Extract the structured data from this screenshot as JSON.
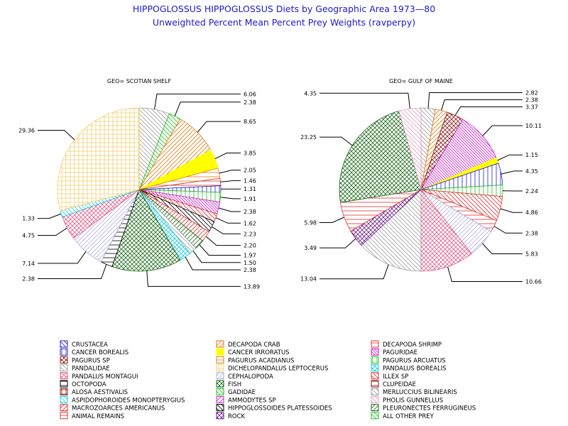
{
  "title": "HIPPOGLOSSUS HIPPOGLOSSUS Diets by Geographic Area 1973—80",
  "subtitle": "Unweighted Percent Mean Percent Prey  Weights (ravperpy)",
  "categories": [
    {
      "name": "CRUSTACEA",
      "color": "#2020cc",
      "pattern": "diag-left"
    },
    {
      "name": "DECAPODA CRAB",
      "color": "#e07a10",
      "pattern": "diag-right"
    },
    {
      "name": "DECAPODA SHRIMP",
      "color": "#e03030",
      "pattern": "horiz"
    },
    {
      "name": "CANCER BOREALIS",
      "color": "#2020cc",
      "pattern": "vert"
    },
    {
      "name": "CANCER IRRORATUS",
      "color": "#ffff00",
      "pattern": "solid"
    },
    {
      "name": "PAGURIDAE",
      "color": "#cc20cc",
      "pattern": "diag-left-dense"
    },
    {
      "name": "PAGURUS SP",
      "color": "#8b1a1a",
      "pattern": "cross-diag"
    },
    {
      "name": "PAGURUS ACADIANUS",
      "color": "#e07a10",
      "pattern": "horiz"
    },
    {
      "name": "PAGURUS ARCUATUS",
      "color": "#20c020",
      "pattern": "vert"
    },
    {
      "name": "PANDALIDAE",
      "color": "#a0a0a0",
      "pattern": "diag-left"
    },
    {
      "name": "DICHELOPANDALUS LEPTOCERUS",
      "color": "#f0d070",
      "pattern": "grid"
    },
    {
      "name": "PANDALUS BOREALIS",
      "color": "#20c8e0",
      "pattern": "cross-diag"
    },
    {
      "name": "PANDALUS MONTAGUI",
      "color": "#e0608a",
      "pattern": "cross-diag"
    },
    {
      "name": "CEPHALOPODA",
      "color": "#b0b0e0",
      "pattern": "diag-right"
    },
    {
      "name": "ILLEX SP",
      "color": "#e03030",
      "pattern": "diag-left"
    },
    {
      "name": "OCTOPODA",
      "color": "#000000",
      "pattern": "horiz"
    },
    {
      "name": "FISH",
      "color": "#1a6a1a",
      "pattern": "cross-diag"
    },
    {
      "name": "CLUPEIDAE",
      "color": "#8b1a1a",
      "pattern": "horiz"
    },
    {
      "name": "ALOSA AESTIVALIS",
      "color": "#8b1a1a",
      "pattern": "grid"
    },
    {
      "name": "GADIDAE",
      "color": "#20c020",
      "pattern": "diag-left"
    },
    {
      "name": "MERLUCCIUS BILINEARIS",
      "color": "#a0a0a0",
      "pattern": "diag-left"
    },
    {
      "name": "ASPIDOPHOROIDES MONOPTERYGIUS",
      "color": "#20c8e0",
      "pattern": "diag-left"
    },
    {
      "name": "AMMODYTES SP",
      "color": "#cc20cc",
      "pattern": "diag-right"
    },
    {
      "name": "PHOLIS GUNNELLUS",
      "color": "#e0a0c0",
      "pattern": "diag-left"
    },
    {
      "name": "MACROZOARCES AMERICANUS",
      "color": "#e03030",
      "pattern": "diag-right"
    },
    {
      "name": "HIPPOGLOSSOIDES PLATESSOIDES",
      "color": "#000000",
      "pattern": "diag-left"
    },
    {
      "name": "PLEURONECTES FERRUGINEUS",
      "color": "#1a6a1a",
      "pattern": "diag-right"
    },
    {
      "name": "ANIMAL REMAINS",
      "color": "#e03030",
      "pattern": "horiz"
    },
    {
      "name": "ROCK",
      "color": "#6a1a8a",
      "pattern": "cross-diag"
    },
    {
      "name": "ALL OTHER PREY",
      "color": "#20c020",
      "pattern": "diag-left"
    }
  ],
  "chart_data": [
    {
      "type": "pie",
      "title": "GEO= SCOTIAN SHELF",
      "slices": [
        {
          "category": "PANDALIDAE",
          "value": 6.06,
          "label": "6.06"
        },
        {
          "category": "GADIDAE",
          "value": 2.38,
          "label": "2.38"
        },
        {
          "category": "DECAPODA CRAB",
          "value": 8.65,
          "label": "8.65"
        },
        {
          "category": "CANCER IRRORATUS",
          "value": 3.85,
          "label": "3.85"
        },
        {
          "category": "PAGURUS ACADIANUS",
          "value": 2.05,
          "label": "2.05"
        },
        {
          "category": "DECAPODA SHRIMP",
          "value": 1.46,
          "label": "1.46"
        },
        {
          "category": "CANCER BOREALIS",
          "value": 1.31,
          "label": "1.31"
        },
        {
          "category": "PAGURUS ARCUATUS",
          "value": 1.91,
          "label": "1.91"
        },
        {
          "category": "PAGURIDAE",
          "value": 2.38,
          "label": "2.38"
        },
        {
          "category": "ILLEX SP",
          "value": 1.62,
          "label": "1.62"
        },
        {
          "category": "HIPPOGLOSSOIDES PLATESSOIDES",
          "value": 2.23,
          "label": "2.23"
        },
        {
          "category": "MACROZOARCES AMERICANUS",
          "value": 2.2,
          "label": "2.20"
        },
        {
          "category": "PLEURONECTES FERRUGINEUS",
          "value": 1.97,
          "label": "1.97"
        },
        {
          "category": "MERLUCCIUS BILINEARIS",
          "value": 1.5,
          "label": "1.50"
        },
        {
          "category": "PANDALUS BOREALIS",
          "value": 2.38,
          "label": "2.38"
        },
        {
          "category": "FISH",
          "value": 13.89,
          "label": "13.89"
        },
        {
          "category": "OCTOPODA",
          "value": 2.38,
          "label": "2.38"
        },
        {
          "category": "CEPHALOPODA",
          "value": 7.14,
          "label": "7.14"
        },
        {
          "category": "PANDALUS MONTAGUI",
          "value": 4.75,
          "label": "4.75"
        },
        {
          "category": "ASPIDOPHOROIDES MONOPTERYGIUS",
          "value": 1.33,
          "label": "1.33"
        },
        {
          "category": "DICHELOPANDALUS LEPTOCERUS",
          "value": 29.36,
          "label": "29.36"
        }
      ]
    },
    {
      "type": "pie",
      "title": "GEO= GULF OF MAINE",
      "slices": [
        {
          "category": "PANDALIDAE",
          "value": 2.82,
          "label": "2.82"
        },
        {
          "category": "DECAPODA CRAB",
          "value": 2.38,
          "label": "2.38"
        },
        {
          "category": "PAGURUS SP",
          "value": 3.37,
          "label": "3.37"
        },
        {
          "category": "PAGURIDAE",
          "value": 10.11,
          "label": "10.11"
        },
        {
          "category": "CANCER IRRORATUS",
          "value": 1.15,
          "label": "1.15"
        },
        {
          "category": "CANCER BOREALIS",
          "value": 4.35,
          "label": "4.35"
        },
        {
          "category": "PAGURUS ARCUATUS",
          "value": 2.24,
          "label": "2.24"
        },
        {
          "category": "ILLEX SP",
          "value": 4.86,
          "label": "4.86"
        },
        {
          "category": "DECAPODA SHRIMP",
          "value": 2.38,
          "label": "2.38"
        },
        {
          "category": "CEPHALOPODA",
          "value": 5.83,
          "label": "5.83"
        },
        {
          "category": "PANDALUS MONTAGUI",
          "value": 10.66,
          "label": "10.66"
        },
        {
          "category": "MERLUCCIUS BILINEARIS",
          "value": 13.04,
          "label": "13.04"
        },
        {
          "category": "ROCK",
          "value": 3.49,
          "label": "3.49"
        },
        {
          "category": "ANIMAL REMAINS",
          "value": 5.98,
          "label": "5.98"
        },
        {
          "category": "FISH",
          "value": 23.25,
          "label": "23.25"
        },
        {
          "category": "PHOLIS GUNNELLUS",
          "value": 4.35,
          "label": "4.35"
        }
      ]
    }
  ]
}
